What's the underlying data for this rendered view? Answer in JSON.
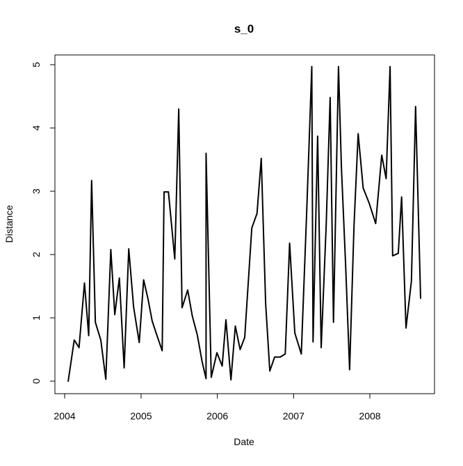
{
  "chart_data": {
    "type": "line",
    "title": "s_0",
    "xlabel": "Date",
    "ylabel": "Distance",
    "xlim": [
      "2004-01-01",
      "2008-10-01"
    ],
    "ylim": [
      0,
      5
    ],
    "grid": false,
    "x_ticks": [
      {
        "date": "2004-01-01",
        "label": "2004"
      },
      {
        "date": "2005-01-01",
        "label": "2005"
      },
      {
        "date": "2006-01-01",
        "label": "2006"
      },
      {
        "date": "2007-01-01",
        "label": "2007"
      },
      {
        "date": "2008-01-01",
        "label": "2008"
      }
    ],
    "y_ticks": [
      0,
      1,
      2,
      3,
      4,
      5
    ],
    "line_color": "#000000",
    "series": [
      {
        "x": [
          "2004-01-18",
          "2004-02-16",
          "2004-03-10",
          "2004-04-05",
          "2004-04-25",
          "2004-05-09",
          "2004-05-27",
          "2004-06-22",
          "2004-07-16",
          "2004-08-09",
          "2004-08-28",
          "2004-09-19",
          "2004-10-12",
          "2004-11-03",
          "2004-11-26",
          "2004-12-23",
          "2005-01-13",
          "2005-02-03",
          "2005-02-23",
          "2005-03-17",
          "2005-04-12",
          "2005-04-21",
          "2005-05-12",
          "2005-06-11",
          "2005-06-30",
          "2005-07-16",
          "2005-08-12",
          "2005-09-03",
          "2005-09-27",
          "2005-10-20",
          "2005-11-08",
          "2005-11-08",
          "2005-12-03",
          "2005-12-30",
          "2006-01-24",
          "2006-02-11",
          "2006-03-07",
          "2006-03-28",
          "2006-04-20",
          "2006-05-12",
          "2006-06-15",
          "2006-07-10",
          "2006-07-30",
          "2006-08-20",
          "2006-09-09",
          "2006-10-02",
          "2006-10-29",
          "2006-11-22",
          "2006-12-13",
          "2007-01-07",
          "2007-02-07",
          "2007-03-05",
          "2007-03-29",
          "2007-04-04",
          "2007-04-26",
          "2007-05-13",
          "2007-06-06",
          "2007-06-25",
          "2007-07-11",
          "2007-08-04",
          "2007-08-18",
          "2007-09-07",
          "2007-09-26",
          "2007-10-17",
          "2007-11-06",
          "2007-11-30",
          "2007-12-29",
          "2008-01-29",
          "2008-02-27",
          "2008-03-19",
          "2008-04-07",
          "2008-04-19",
          "2008-05-16",
          "2008-06-01",
          "2008-06-22",
          "2008-07-18",
          "2008-08-07",
          "2008-08-31"
        ],
        "values": [
          0.0,
          0.65,
          0.53,
          1.55,
          0.72,
          3.17,
          0.93,
          0.65,
          0.03,
          2.08,
          1.05,
          1.63,
          0.21,
          2.09,
          1.17,
          0.61,
          1.6,
          1.3,
          0.95,
          0.73,
          0.48,
          2.99,
          2.99,
          1.93,
          4.3,
          1.16,
          1.44,
          1.03,
          0.73,
          0.31,
          0.04,
          3.6,
          0.06,
          0.45,
          0.24,
          0.97,
          0.02,
          0.87,
          0.5,
          0.69,
          2.42,
          2.65,
          3.52,
          1.23,
          0.16,
          0.38,
          0.38,
          0.43,
          2.18,
          0.76,
          0.43,
          2.72,
          4.97,
          0.62,
          3.87,
          0.53,
          2.46,
          4.48,
          0.93,
          4.97,
          3.38,
          1.85,
          0.18,
          2.45,
          3.91,
          3.05,
          2.81,
          2.49,
          3.57,
          3.2,
          4.97,
          1.98,
          2.02,
          2.91,
          0.84,
          1.58,
          4.34,
          1.31
        ]
      }
    ]
  }
}
